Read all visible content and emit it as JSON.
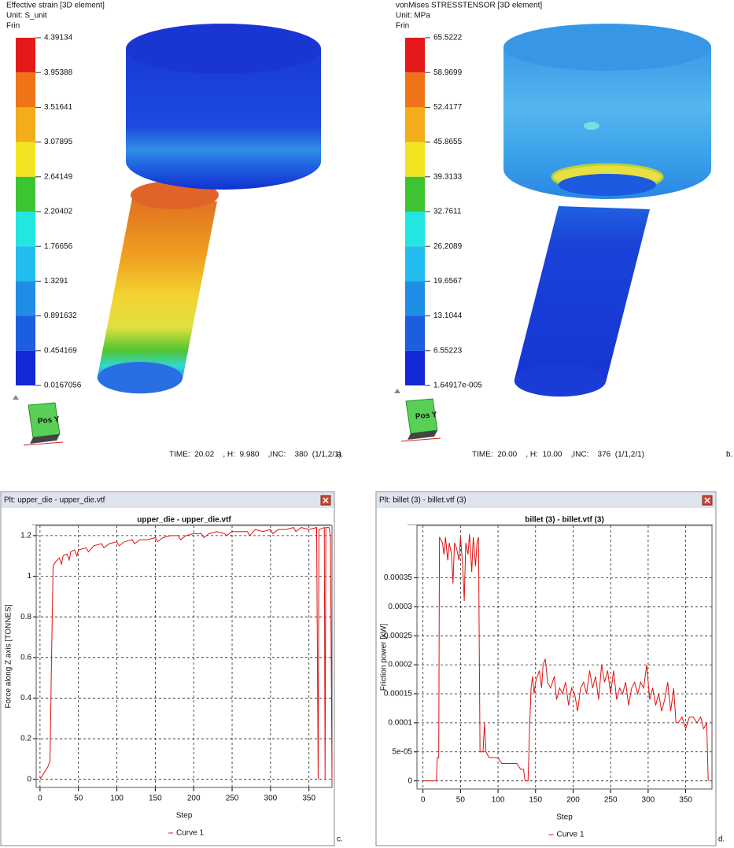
{
  "fem_panels": [
    {
      "label": "a.",
      "title": "Effective strain [3D element]",
      "unit": "Unit: S_unit",
      "subtitle": "Frin",
      "view": "Pos Y",
      "status": "TIME:  20.02    , H:  9.980    ,INC:    380  (1/1,2/1)",
      "colorbar": {
        "ticks": [
          4.39134,
          3.95388,
          3.51641,
          3.07895,
          2.64149,
          2.20402,
          1.76656,
          1.3291,
          0.891632,
          0.454169,
          0.0167056
        ],
        "colors": [
          "#e41a1a",
          "#ef7418",
          "#f3ad1c",
          "#f2e420",
          "#3cc432",
          "#24e6e0",
          "#22bdee",
          "#1f8ce6",
          "#1c5ee0",
          "#1328d6"
        ]
      }
    },
    {
      "label": "b.",
      "title": "vonMises STRESSTENSOR [3D element]",
      "unit": "Unit: MPa",
      "subtitle": "Frin",
      "view": "Pos Y",
      "status": "TIME:  20.00    , H:  10.00    ,INC:    376  (1/1,2/1)",
      "colorbar": {
        "ticks": [
          65.5222,
          58.9699,
          52.4177,
          45.8655,
          39.3133,
          32.7611,
          26.2089,
          19.6567,
          13.1044,
          6.55223,
          {
            "value": 1.64917e-05,
            "label": "1.64917e-005"
          }
        ],
        "colors": [
          "#e41a1a",
          "#ef7418",
          "#f3ad1c",
          "#f2e420",
          "#3cc432",
          "#24e6e0",
          "#22bdee",
          "#1f8ce6",
          "#1c5ee0",
          "#1328d6"
        ]
      }
    }
  ],
  "chart_data": [
    {
      "type": "line",
      "panel_label": "c.",
      "window_title": "Plt: upper_die - upper_die.vtf",
      "title": "upper_die - upper_die.vtf",
      "x_label": "Step",
      "y_label": "Force along Z axis [TONNES]",
      "x": [
        0,
        5,
        10,
        13,
        15,
        17,
        20,
        25,
        28,
        30,
        35,
        38,
        40,
        45,
        48,
        50,
        60,
        63,
        70,
        80,
        83,
        90,
        100,
        103,
        110,
        120,
        123,
        130,
        140,
        150,
        153,
        160,
        170,
        180,
        183,
        190,
        200,
        210,
        213,
        220,
        230,
        240,
        243,
        250,
        260,
        270,
        273,
        280,
        290,
        300,
        303,
        310,
        320,
        330,
        333,
        340,
        350,
        360,
        362,
        363,
        370,
        371,
        372,
        376,
        378,
        380
      ],
      "series": [
        {
          "name": "Curve 1",
          "color": "#e01010",
          "values": [
            0,
            0.03,
            0.06,
            0.09,
            0.6,
            1.05,
            1.07,
            1.09,
            1.06,
            1.1,
            1.11,
            1.08,
            1.12,
            1.13,
            1.1,
            1.13,
            1.14,
            1.12,
            1.15,
            1.16,
            1.14,
            1.16,
            1.17,
            1.15,
            1.17,
            1.18,
            1.16,
            1.18,
            1.18,
            1.19,
            1.17,
            1.19,
            1.2,
            1.2,
            1.18,
            1.2,
            1.21,
            1.21,
            1.19,
            1.21,
            1.22,
            1.21,
            1.2,
            1.22,
            1.22,
            1.22,
            1.2,
            1.23,
            1.22,
            1.23,
            1.21,
            1.23,
            1.23,
            1.24,
            1.22,
            1.24,
            1.23,
            1.24,
            0,
            1.23,
            1.24,
            0,
            1.24,
            1.24,
            1.2,
            0
          ]
        }
      ],
      "xlim": [
        -5,
        380
      ],
      "ylim": [
        -0.04,
        1.25
      ],
      "xticks": [
        0,
        50,
        100,
        150,
        200,
        250,
        300,
        350
      ],
      "yticks": [
        0,
        0.2,
        0.4,
        0.6,
        0.8,
        1,
        1.2
      ],
      "grid": true
    },
    {
      "type": "line",
      "panel_label": "d.",
      "window_title": "Plt: billet (3) - billet.vtf (3)",
      "title": "billet (3) - billet.vtf (3)",
      "x_label": "Step",
      "y_label": "Friction power [kW]",
      "x": [
        0,
        18,
        19,
        21,
        22,
        26,
        28,
        30,
        33,
        35,
        38,
        40,
        42,
        45,
        48,
        50,
        53,
        55,
        57,
        60,
        62,
        65,
        67,
        70,
        72,
        74,
        76,
        80,
        82,
        84,
        88,
        95,
        100,
        105,
        115,
        125,
        130,
        134,
        136,
        140,
        142,
        144,
        146,
        148,
        150,
        155,
        158,
        160,
        163,
        166,
        170,
        175,
        178,
        182,
        186,
        190,
        194,
        198,
        202,
        206,
        210,
        214,
        218,
        222,
        226,
        230,
        234,
        238,
        242,
        246,
        250,
        254,
        258,
        262,
        266,
        270,
        274,
        278,
        282,
        286,
        290,
        294,
        298,
        302,
        306,
        310,
        314,
        318,
        322,
        326,
        330,
        334,
        337,
        340,
        345,
        350,
        355,
        360,
        365,
        370,
        374,
        378,
        380
      ],
      "series": [
        {
          "name": "Curve 1",
          "color": "#e01010",
          "values": [
            0,
            0,
            4e-05,
            4e-05,
            0.00042,
            0.00041,
            0.00039,
            0.00042,
            0.00038,
            0.00041,
            0.00039,
            0.00034,
            0.00041,
            0.0004,
            0.00038,
            0.00042,
            0.00037,
            0.00031,
            0.00041,
            0.00039,
            0.000425,
            0.00036,
            0.00042,
            0.00037,
            0.00041,
            0.00042,
            5e-05,
            5e-05,
            0.0001,
            5e-05,
            4e-05,
            4e-05,
            4e-05,
            3e-05,
            3e-05,
            3e-05,
            2e-05,
            2e-05,
            0,
            0,
            9e-05,
            0.00016,
            0.00018,
            0.00015,
            0.00017,
            0.00019,
            0.00016,
            0.0002,
            0.00021,
            0.00017,
            0.00016,
            0.00018,
            0.00014,
            0.00016,
            0.00015,
            0.00017,
            0.00013,
            0.00016,
            0.00015,
            0.00012,
            0.00016,
            0.00017,
            0.00015,
            0.00019,
            0.00016,
            0.00018,
            0.00014,
            0.0002,
            0.00017,
            0.00019,
            0.00015,
            0.00019,
            0.00014,
            0.00016,
            0.00015,
            0.00017,
            0.00013,
            0.00016,
            0.00017,
            0.00015,
            0.00017,
            0.00016,
            0.0002,
            0.00014,
            0.00016,
            0.00013,
            0.00015,
            0.00012,
            0.00014,
            0.00017,
            0.00012,
            0.00016,
            0.0001,
            0.0001,
            0.00011,
            9e-05,
            0.00011,
            0.00011,
            0.0001,
            0.00011,
            9e-05,
            0.0001,
            0
          ]
        }
      ],
      "xlim": [
        -8,
        385
      ],
      "ylim": [
        -1.4e-05,
        0.00044
      ],
      "xticks": [
        0,
        50,
        100,
        150,
        200,
        250,
        300,
        350
      ],
      "yticks": [
        0,
        {
          "value": 5e-05,
          "label": "5e-05"
        },
        0.0001,
        0.00015,
        0.0002,
        0.00025,
        0.0003,
        0.00035
      ],
      "grid": true
    }
  ]
}
